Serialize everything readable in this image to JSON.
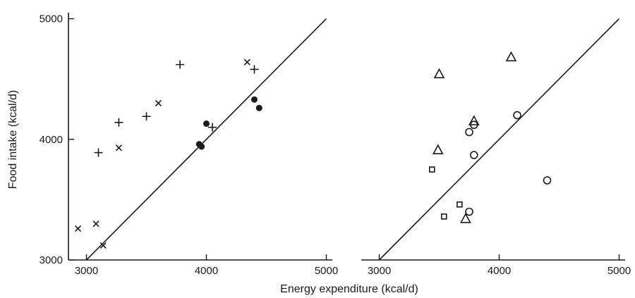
{
  "chart_data": {
    "xlabel": "Energy expenditure (kcal/d)",
    "ylabel": "Food intake (kcal/d)",
    "panels": [
      {
        "type": "scatter",
        "xlim": [
          2850,
          5050
        ],
        "ylim": [
          3000,
          5050
        ],
        "x_ticks": [
          3000,
          4000,
          5000
        ],
        "y_ticks": [
          3000,
          4000,
          5000
        ],
        "x_tick_labels": [
          "3000",
          "4000",
          "5000"
        ],
        "y_tick_labels": [
          "3000",
          "4000",
          "5000"
        ],
        "identity_line": [
          [
            3000,
            3000
          ],
          [
            5000,
            5000
          ]
        ],
        "series": [
          {
            "marker": "plus",
            "points": [
              [
                3100,
                3890
              ],
              [
                3270,
                4140
              ],
              [
                3500,
                4190
              ],
              [
                3780,
                4620
              ],
              [
                4050,
                4100
              ],
              [
                4400,
                4580
              ]
            ]
          },
          {
            "marker": "cross",
            "points": [
              [
                2930,
                3260
              ],
              [
                3080,
                3300
              ],
              [
                3140,
                3120
              ],
              [
                3270,
                3930
              ],
              [
                3600,
                4300
              ],
              [
                4340,
                4640
              ]
            ]
          },
          {
            "marker": "dot",
            "points": [
              [
                3940,
                3960
              ],
              [
                3960,
                3940
              ],
              [
                4000,
                4130
              ],
              [
                4400,
                4330
              ],
              [
                4440,
                4260
              ]
            ]
          }
        ]
      },
      {
        "type": "scatter",
        "xlim": [
          2850,
          5050
        ],
        "ylim": [
          3000,
          5050
        ],
        "x_ticks": [
          3000,
          4000,
          5000
        ],
        "y_ticks": [
          3000,
          4000,
          5000
        ],
        "x_tick_labels": [
          "3000",
          "4000",
          "5000"
        ],
        "y_tick_labels": [],
        "identity_line": [
          [
            3000,
            3000
          ],
          [
            5000,
            5000
          ]
        ],
        "series": [
          {
            "marker": "triangle",
            "points": [
              [
                3500,
                4540
              ],
              [
                3490,
                3910
              ],
              [
                3790,
                4150
              ],
              [
                4100,
                4680
              ],
              [
                3720,
                3340
              ]
            ]
          },
          {
            "marker": "circle",
            "points": [
              [
                3750,
                4060
              ],
              [
                3790,
                4120
              ],
              [
                3790,
                3870
              ],
              [
                4150,
                4200
              ],
              [
                3750,
                3400
              ],
              [
                4400,
                3660
              ]
            ]
          },
          {
            "marker": "square",
            "points": [
              [
                3440,
                3750
              ],
              [
                3540,
                3360
              ],
              [
                3670,
                3460
              ]
            ]
          }
        ]
      }
    ]
  }
}
